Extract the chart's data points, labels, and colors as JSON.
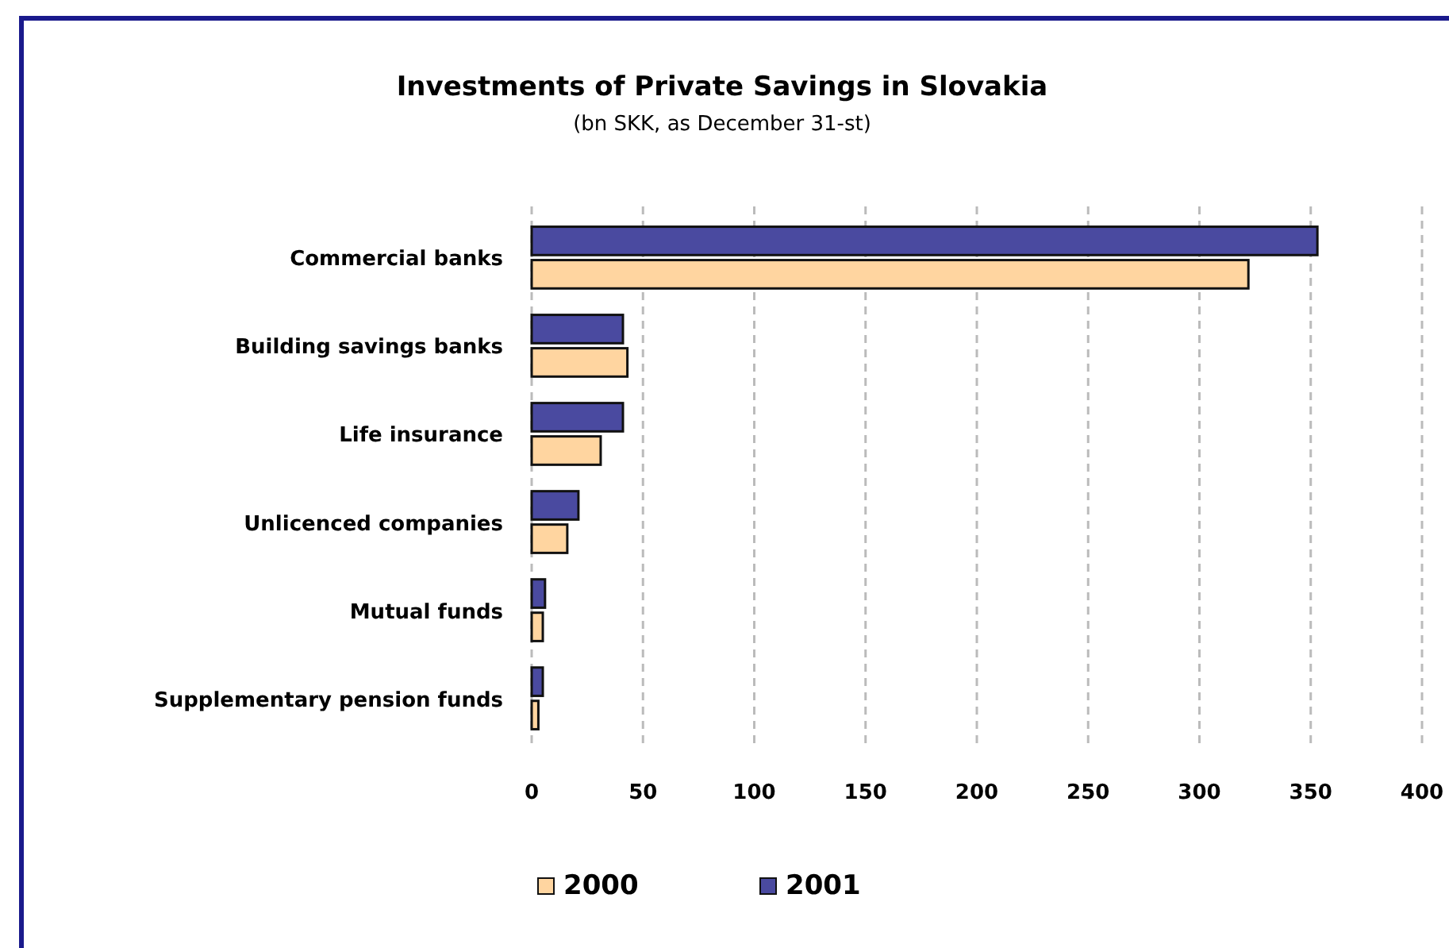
{
  "chart_data": {
    "type": "bar",
    "orientation": "horizontal",
    "title": "Investments of Private Savings in Slovakia",
    "subtitle": "(bn SKK, as December 31-st)",
    "categories": [
      "Commercial banks",
      "Building savings banks",
      "Life insurance",
      "Unlicenced companies",
      "Mutual funds",
      "Supplementary pension funds"
    ],
    "series": [
      {
        "name": "2000",
        "color": "#ffd5a0",
        "values": [
          322,
          43,
          31,
          16,
          5,
          3
        ]
      },
      {
        "name": "2001",
        "color": "#4a4aa0",
        "values": [
          353,
          41,
          41,
          21,
          6,
          5
        ]
      }
    ],
    "xlim": [
      0,
      400
    ],
    "xticks": [
      0,
      50,
      100,
      150,
      200,
      250,
      300,
      350,
      400
    ],
    "grid": "x",
    "legend": "bottom"
  }
}
